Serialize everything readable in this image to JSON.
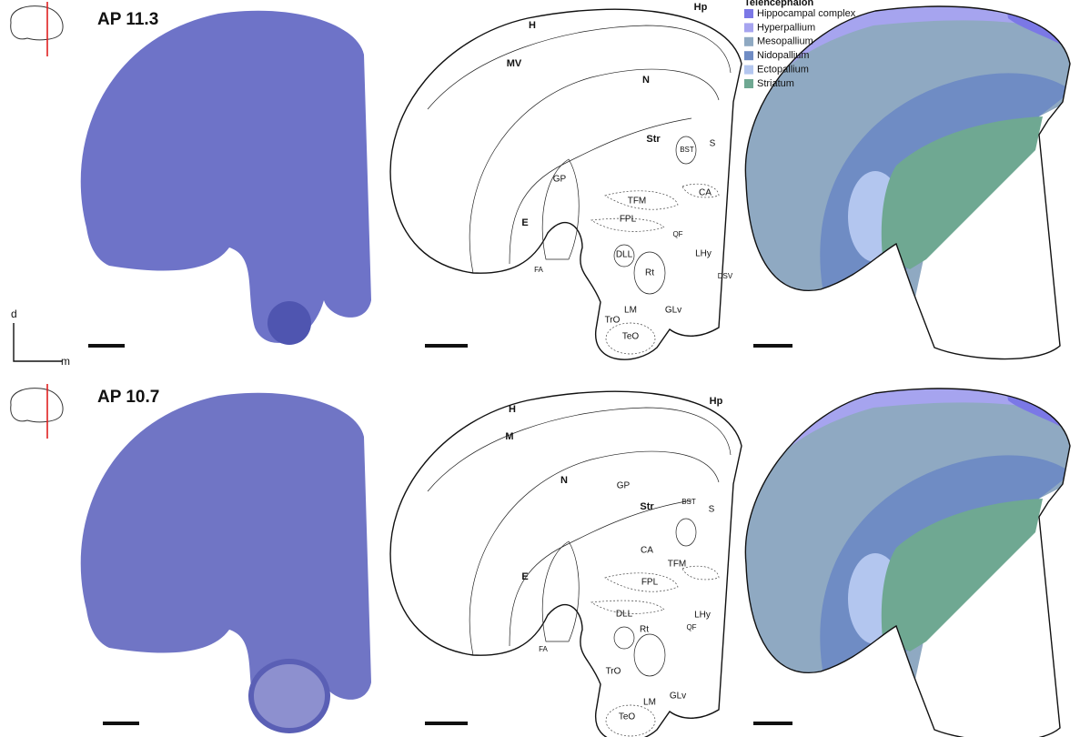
{
  "panels": [
    {
      "title": "AP 11.3",
      "regions": [
        "H",
        "Hp",
        "MV",
        "N",
        "Str",
        "BST",
        "S",
        "CA",
        "TFM",
        "GP",
        "E",
        "FPL",
        "QF",
        "LHy",
        "DLL",
        "Rt",
        "DSV",
        "FA",
        "TrO",
        "LM",
        "GLv",
        "TeO"
      ]
    },
    {
      "title": "AP 10.7",
      "regions": [
        "H",
        "Hp",
        "M",
        "N",
        "GP",
        "Str",
        "BST",
        "S",
        "CA",
        "TFM",
        "E",
        "FPL",
        "LHy",
        "DLL",
        "QF",
        "Rt",
        "FA",
        "TrO",
        "LM",
        "GLv",
        "TeO"
      ]
    }
  ],
  "legend": {
    "title": "Telencephalon",
    "items": [
      {
        "name": "Hippocampal complex",
        "color": "#7b78e6"
      },
      {
        "name": "Hyperpallium",
        "color": "#a6a4ef"
      },
      {
        "name": "Mesopallium",
        "color": "#8fa9c2"
      },
      {
        "name": "Nidopallium",
        "color": "#6f8cc4"
      },
      {
        "name": "Ectopallium",
        "color": "#b3c6ef"
      },
      {
        "name": "Striatum",
        "color": "#6fa892"
      }
    ]
  },
  "orientation": {
    "dorsal": "d",
    "medial": "m"
  }
}
